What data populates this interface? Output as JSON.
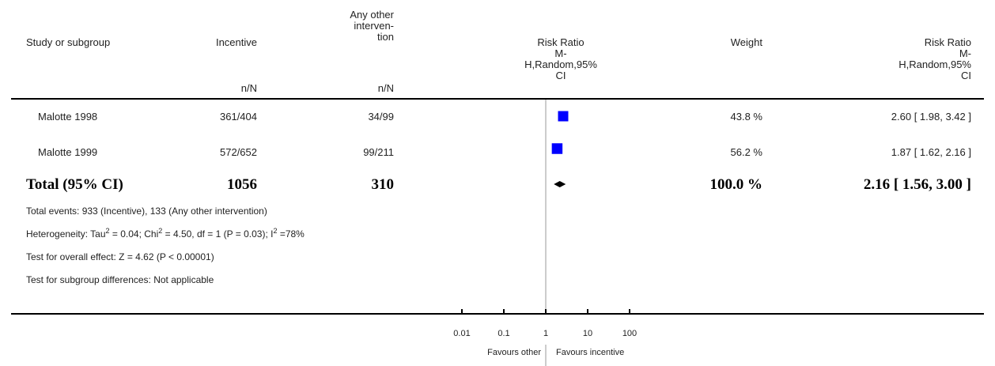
{
  "header": {
    "study": "Study or subgroup",
    "incentive": "Incentive",
    "other": [
      "Any other",
      "interven-",
      "tion"
    ],
    "nN_incentive": "n/N",
    "nN_other": "n/N",
    "rr_plot": [
      "Risk Ratio",
      "M-",
      "H,Random,95%",
      "CI"
    ],
    "weight": "Weight",
    "rr_value": [
      "Risk Ratio",
      "M-",
      "H,Random,95%",
      "CI"
    ]
  },
  "studies": [
    {
      "name": "Malotte 1998",
      "incentive": "361/404",
      "other": "34/99",
      "weight": "43.8 %",
      "ci": "2.60 [ 1.98, 3.42 ]"
    },
    {
      "name": "Malotte 1999",
      "incentive": "572/652",
      "other": "99/211",
      "weight": "56.2 %",
      "ci": "1.87 [ 1.62, 2.16 ]"
    }
  ],
  "total": {
    "label": "Total (95% CI)",
    "incentive": "1056",
    "other": "310",
    "weight": "100.0 %",
    "ci": "2.16 [ 1.56, 3.00 ]"
  },
  "footnotes": {
    "events": "Total events: 933 (Incentive), 133 (Any other intervention)",
    "heterogeneity": {
      "prefix": "Heterogeneity: Tau",
      "tau2": "2",
      "mid1": " = 0.04; Chi",
      "chi2": "2",
      "mid2": " = 4.50, df = 1 (P = 0.03); I",
      "i2": "2",
      "suffix": " =78%"
    },
    "overall": "Test for overall effect: Z = 4.62 (P < 0.00001)",
    "subgroup": "Test for subgroup differences: Not applicable"
  },
  "axis": {
    "ticks": [
      "0.01",
      "0.1",
      "1",
      "10",
      "100"
    ],
    "favours_left": "Favours other",
    "favours_right": "Favours incentive"
  },
  "colors": {
    "study_box": "#0000ff",
    "diamond": "#000000",
    "line": "#000000"
  },
  "chart_data": {
    "type": "forest",
    "scale": "log",
    "xlim": [
      0.01,
      100
    ],
    "x_ticks": [
      0.01,
      0.1,
      1,
      10,
      100
    ],
    "studies": [
      {
        "name": "Malotte 1998",
        "rr": 2.6,
        "lower": 1.98,
        "upper": 3.42,
        "weight": 43.8
      },
      {
        "name": "Malotte 1999",
        "rr": 1.87,
        "lower": 1.62,
        "upper": 2.16,
        "weight": 56.2
      }
    ],
    "pooled": {
      "rr": 2.16,
      "lower": 1.56,
      "upper": 3.0
    }
  }
}
